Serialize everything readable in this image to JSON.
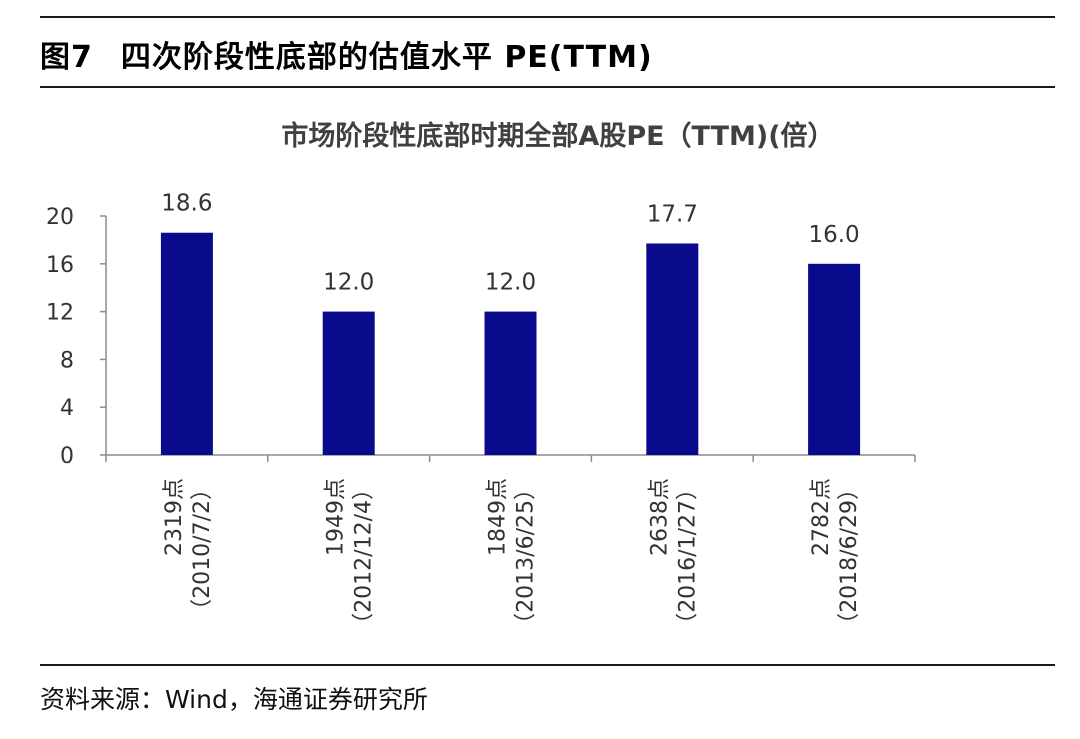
{
  "figure": {
    "number": "图7",
    "title": "四次阶段性底部的估值水平 PE(TTM)"
  },
  "source": "资料来源：Wind，海通证券研究所",
  "chart_data": {
    "type": "bar",
    "title": "市场阶段性底部时期全部A股PE（TTM)(倍）",
    "categories": [
      [
        "2319点",
        "（2010/7/2）"
      ],
      [
        "1949点",
        "（2012/12/4）"
      ],
      [
        "1849点",
        "（2013/6/25）"
      ],
      [
        "2638点",
        "（2016/1/27）"
      ],
      [
        "2782点",
        "（2018/6/29）"
      ]
    ],
    "values": [
      18.6,
      12.0,
      12.0,
      17.7,
      16.0
    ],
    "value_labels": [
      "18.6",
      "12.0",
      "12.0",
      "17.7",
      "16.0"
    ],
    "ylim": [
      0,
      20
    ],
    "yticks": [
      "0",
      "4",
      "8",
      "12",
      "16",
      "20"
    ],
    "grid": false,
    "bar_color": "#0a0a8c",
    "xlabel": "",
    "ylabel": ""
  }
}
